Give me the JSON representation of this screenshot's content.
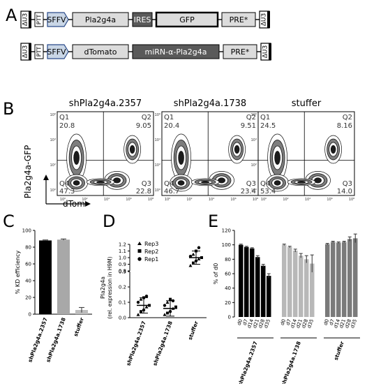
{
  "panels": {
    "A": "A",
    "B": "B",
    "C": "C",
    "D": "D",
    "E": "E"
  },
  "panel_a": {
    "constructs": [
      {
        "elements": [
          "ΔU3",
          "PTT",
          "SFFV",
          "Pla2g4a",
          "IRES",
          "GFP",
          "PRE*",
          "ΔU3"
        ]
      },
      {
        "elements": [
          "ΔU3",
          "PTT",
          "SFFV",
          "dTomato",
          "miRN-α-Pla2g4a",
          "PRE*",
          "ΔU3"
        ]
      }
    ],
    "colors": {
      "sffv": "#c9d6e6",
      "dark": "#5a5a5a",
      "light": "#dcdcdc"
    }
  },
  "panel_b": {
    "ylabel": "Pla2g4a-GFP",
    "xlabel": "dTom",
    "plots": [
      {
        "title": "shPla2g4a.2357",
        "q1": "20.8",
        "q2": "9.05",
        "q3": "22.8",
        "q4": "47.3"
      },
      {
        "title": "shPla2g4a.1738",
        "q1": "20.4",
        "q2": "9.51",
        "q3": "23.4",
        "q4": "46.7"
      },
      {
        "title": "stuffer",
        "q1": "24.5",
        "q2": "8.16",
        "q3": "14.0",
        "q4": "53.4"
      }
    ],
    "quadrant_labels": [
      "Q1",
      "Q2",
      "Q3",
      "Q4"
    ],
    "tick_labels": {
      "x": [
        "10⁰",
        "10²",
        "10⁴",
        "10⁶",
        "10⁸"
      ],
      "y": [
        "10⁰",
        "10²",
        "10⁴",
        "10⁶"
      ]
    }
  },
  "chart_data": [
    {
      "type": "bar",
      "title": "",
      "ylabel": "% KD efficiency",
      "ylim": [
        0,
        100
      ],
      "yticks": [
        "0",
        "20",
        "40",
        "60",
        "80",
        "100"
      ],
      "categories": [
        "shPla2g4a.2357",
        "shPla2g4a.1738",
        "stuffer"
      ],
      "values": [
        88,
        89,
        5
      ],
      "errors": [
        0.6,
        0.8,
        3
      ],
      "colors": [
        "#000000",
        "#a8a8a8",
        "#bdbdbd"
      ]
    },
    {
      "type": "scatter",
      "ylabel": "Pla2g4a",
      "ylabel2": "(rel. expression in H9M)",
      "categories": [
        "shPla2g4a.2357",
        "shPla2g4a.1738",
        "stuffer"
      ],
      "legend": [
        "Rep3",
        "Rep2",
        "Rep1"
      ],
      "yticks_lower": [
        "0.0",
        "0.1",
        "0.2",
        "0.3"
      ],
      "yticks_upper": [
        "0.8",
        "0.9",
        "1.0",
        "1.1",
        "1.2"
      ],
      "means": [
        0.08,
        0.06,
        1.0
      ],
      "sd": [
        0.05,
        0.05,
        0.1
      ],
      "points": [
        [
          0.02,
          0.04,
          0.05,
          0.07,
          0.08,
          0.1,
          0.12,
          0.13,
          0.14
        ],
        [
          0.02,
          0.03,
          0.04,
          0.06,
          0.07,
          0.08,
          0.1,
          0.12,
          0.11
        ],
        [
          0.88,
          0.92,
          0.95,
          0.98,
          1.0,
          1.02,
          1.05,
          1.1,
          1.15
        ]
      ]
    },
    {
      "type": "bar",
      "ylabel": "% of d0",
      "ylim": [
        0,
        120
      ],
      "yticks": [
        "0",
        "20",
        "40",
        "60",
        "80",
        "100",
        "120"
      ],
      "day_labels": [
        "d0",
        "d7",
        "d14",
        "d21",
        "d28",
        "d35"
      ],
      "groups": [
        {
          "name": "shPla2g4a.2357",
          "values": [
            100,
            97,
            95,
            83,
            71,
            57
          ],
          "errors": [
            1,
            1,
            1,
            2,
            2,
            3
          ],
          "color": "#000000"
        },
        {
          "name": "shPla2g4a.1738",
          "values": [
            100,
            97,
            92,
            85,
            80,
            74
          ],
          "errors": [
            1,
            1,
            2,
            3,
            5,
            12
          ],
          "color": "#b8b8b8"
        },
        {
          "name": "stuffer",
          "values": [
            101,
            104,
            103,
            104,
            108,
            109
          ],
          "errors": [
            1,
            1,
            1,
            1,
            3,
            6
          ],
          "color": "#7a7a7a"
        }
      ]
    }
  ]
}
